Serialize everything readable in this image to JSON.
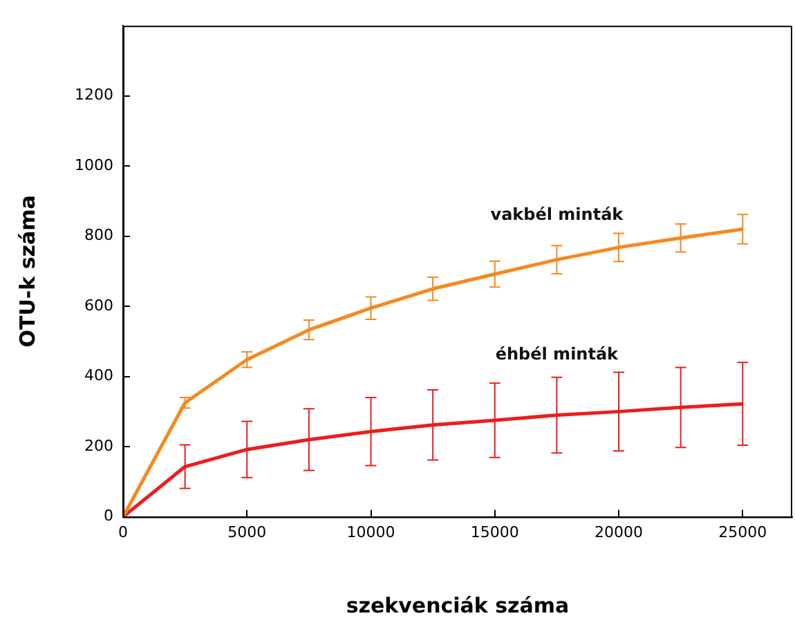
{
  "chart_data": {
    "type": "line",
    "xlabel": "szekvenciák száma",
    "ylabel": "OTU-k száma",
    "x": [
      0,
      2500,
      5000,
      7500,
      10000,
      12500,
      15000,
      17500,
      20000,
      22500,
      25000
    ],
    "series": [
      {
        "name": "vakbél minták",
        "color": "#f5891f",
        "values": [
          0,
          325,
          448,
          533,
          595,
          650,
          692,
          733,
          768,
          795,
          820
        ],
        "errors": [
          null,
          15,
          22,
          28,
          32,
          33,
          37,
          40,
          40,
          40,
          42
        ]
      },
      {
        "name": "éhbél minták",
        "color": "#ee1c1c",
        "values": [
          0,
          143,
          192,
          220,
          243,
          262,
          275,
          290,
          300,
          312,
          322
        ],
        "errors": [
          null,
          62,
          80,
          88,
          97,
          100,
          106,
          108,
          112,
          114,
          118
        ]
      }
    ],
    "xlim": [
      0,
      27000
    ],
    "xticks": [
      0,
      5000,
      10000,
      15000,
      20000,
      25000
    ],
    "ylim": [
      0,
      1400
    ],
    "yticks": [
      0,
      200,
      400,
      600,
      800,
      1000,
      1200
    ],
    "grid": false,
    "legend": false,
    "marker": "none",
    "line_style": "solid"
  }
}
